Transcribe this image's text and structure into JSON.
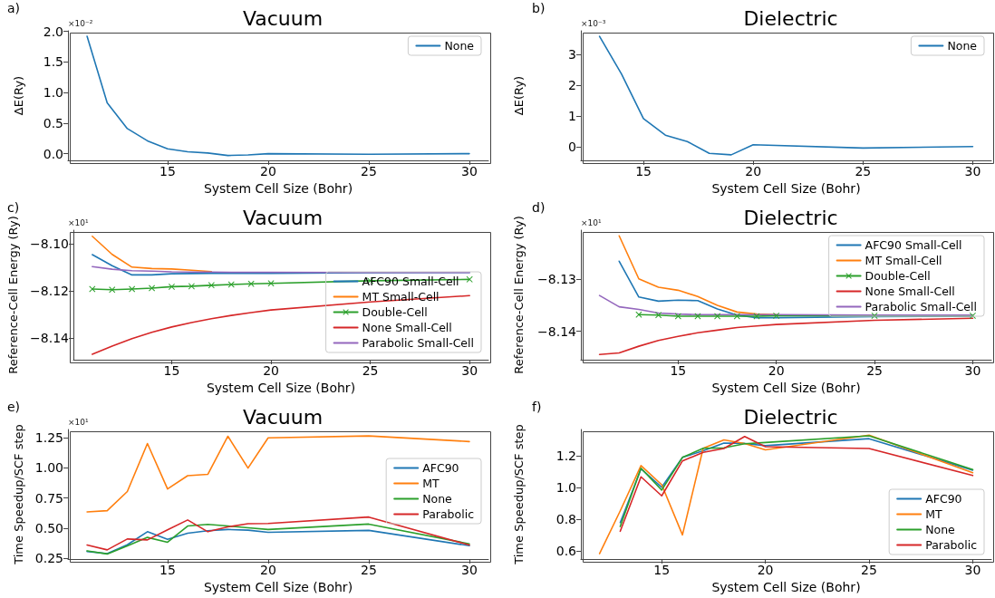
{
  "chart_data": [
    {
      "type": "line",
      "title": "Vacuum",
      "xlabel": "System Cell Size (Bohr)",
      "ylabel": "ΔE(Ry)",
      "annotations": [
        "a)",
        "×10⁻²"
      ],
      "x": [
        11,
        12,
        13,
        14,
        15,
        16,
        17,
        18,
        19,
        20,
        25,
        30
      ],
      "series": [
        {
          "name": "None",
          "color": "#1f77b4",
          "values": [
            1.92,
            0.83,
            0.41,
            0.21,
            0.08,
            0.03,
            0.01,
            -0.03,
            -0.02,
            0.0,
            -0.01,
            0.0
          ]
        }
      ],
      "xlim": [
        10.05,
        30.95
      ],
      "xticks": [
        15,
        20,
        25,
        30
      ],
      "ylim": [
        -0.11,
        2.01
      ],
      "yticks": [
        {
          "value": 0,
          "label": "0.0"
        },
        {
          "value": 0.5,
          "label": "0.5"
        },
        {
          "value": 1,
          "label": "1.0"
        },
        {
          "value": 1.5,
          "label": "1.5"
        },
        {
          "value": 2,
          "label": "2.0"
        }
      ],
      "grid": false,
      "legend": "top right"
    },
    {
      "type": "line",
      "title": "Dielectric",
      "xlabel": "System Cell Size (Bohr)",
      "ylabel": "ΔE(Ry)",
      "annotations": [
        "b)",
        "×10⁻³"
      ],
      "x": [
        13,
        14,
        15,
        16,
        17,
        18,
        19,
        20,
        25,
        30
      ],
      "series": [
        {
          "name": "None",
          "color": "#1f77b4",
          "values": [
            3.6,
            2.38,
            0.93,
            0.39,
            0.18,
            -0.2,
            -0.25,
            0.08,
            -0.03,
            0.02
          ]
        }
      ],
      "xlim": [
        12.15,
        30.85
      ],
      "xticks": [
        15,
        20,
        25,
        30
      ],
      "ylim": [
        -0.43,
        3.78
      ],
      "yticks": [
        0,
        1,
        2,
        3
      ],
      "grid": false,
      "legend": "top right"
    },
    {
      "type": "line",
      "title": "Vacuum",
      "xlabel": "System Cell Size (Bohr)",
      "ylabel": "Reference-Cell Energy (Ry)",
      "annotations": [
        "c)",
        "×10¹"
      ],
      "x": [
        11,
        12,
        13,
        14,
        15,
        16,
        17,
        18,
        19,
        20,
        25,
        30
      ],
      "series": [
        {
          "name": "AFC90 Small-Cell",
          "color": "#1f77b4",
          "values": [
            -8.1046,
            -8.1093,
            -8.1132,
            -8.1132,
            -8.1127,
            -8.1126,
            -8.1125,
            -8.1125,
            -8.1125,
            -8.1125,
            -8.1123,
            -8.1122
          ]
        },
        {
          "name": "MT Small-Cell",
          "color": "#ff7f0e",
          "values": [
            -8.0968,
            -8.1045,
            -8.1099,
            -8.1105,
            -8.1107,
            -8.1112,
            -8.1118,
            null,
            null,
            null,
            null,
            null
          ]
        },
        {
          "name": "Double-Cell",
          "color": "#2ca02c",
          "marker": "cross",
          "values": [
            -8.1192,
            -8.1195,
            -8.1192,
            -8.1188,
            -8.1182,
            -8.118,
            -8.1176,
            -8.1173,
            -8.117,
            -8.1168,
            -8.1157,
            -8.1151
          ]
        },
        {
          "name": "None Small-Cell",
          "color": "#d62728",
          "values": [
            -8.1469,
            -8.1434,
            -8.1403,
            -8.1376,
            -8.1353,
            -8.1334,
            -8.1318,
            -8.1304,
            -8.1292,
            -8.1281,
            -8.1247,
            -8.122
          ]
        },
        {
          "name": "Parabolic Small-Cell",
          "color": "#9467bd",
          "values": [
            -8.1097,
            -8.1108,
            -8.1114,
            -8.1116,
            -8.1119,
            -8.112,
            -8.112,
            -8.1121,
            -8.1121,
            -8.1121,
            -8.1122,
            -8.1122
          ]
        }
      ],
      "xlim": [
        10.05,
        30.95
      ],
      "xticks": [
        15,
        20,
        25,
        30
      ],
      "ylim": [
        -8.1492,
        -8.0942
      ],
      "yticks": [
        {
          "value": -8.14,
          "label": "−8.14"
        },
        {
          "value": -8.12,
          "label": "−8.12"
        },
        {
          "value": -8.1,
          "label": "−8.10"
        }
      ],
      "grid": false,
      "legend": "right"
    },
    {
      "type": "line",
      "title": "Dielectric",
      "xlabel": "System Cell Size (Bohr)",
      "ylabel": "Reference-Cell Energy (Ry)",
      "annotations": [
        "d)",
        "×10¹"
      ],
      "x": [
        11,
        12,
        13,
        14,
        15,
        16,
        17,
        18,
        19,
        20,
        25,
        30
      ],
      "series": [
        {
          "name": "AFC90 Small-Cell",
          "color": "#1f77b4",
          "values": [
            null,
            -8.1265,
            -8.1334,
            -8.1342,
            -8.134,
            -8.1341,
            -8.1357,
            -8.1369,
            -8.1374,
            -8.1374,
            -8.1372,
            -8.1371
          ]
        },
        {
          "name": "MT Small-Cell",
          "color": "#ff7f0e",
          "values": [
            null,
            -8.1216,
            -8.1299,
            -8.1315,
            -8.1321,
            -8.1333,
            -8.135,
            -8.1363,
            -8.1367,
            -8.1368,
            null,
            null
          ]
        },
        {
          "name": "Double-Cell",
          "color": "#2ca02c",
          "marker": "cross",
          "values": [
            null,
            null,
            -8.1368,
            -8.1369,
            -8.1371,
            -8.1371,
            -8.1371,
            -8.1371,
            -8.1371,
            -8.137,
            -8.137,
            -8.137
          ]
        },
        {
          "name": "None Small-Cell",
          "color": "#d62728",
          "values": [
            -8.1445,
            -8.1442,
            -8.1429,
            -8.1418,
            -8.141,
            -8.1403,
            -8.1398,
            -8.1393,
            -8.139,
            -8.1387,
            -8.1379,
            -8.1375
          ]
        },
        {
          "name": "Parabolic Small-Cell",
          "color": "#9467bd",
          "values": [
            -8.1331,
            -8.1353,
            -8.1358,
            -8.1365,
            -8.1367,
            -8.1368,
            -8.1368,
            -8.1368,
            -8.1368,
            -8.1368,
            -8.1369,
            -8.1369
          ]
        }
      ],
      "xlim": [
        10.05,
        30.95
      ],
      "xticks": [
        15,
        20,
        25,
        30
      ],
      "ylim": [
        -8.1455,
        -8.1205
      ],
      "yticks": [
        {
          "value": -8.14,
          "label": "−8.14"
        },
        {
          "value": -8.13,
          "label": "−8.13"
        }
      ],
      "grid": false,
      "legend": "top right"
    },
    {
      "type": "line",
      "title": "Vacuum",
      "xlabel": "System Cell Size (Bohr)",
      "ylabel": "Time Speedup/SCF step",
      "annotations": [
        "e)",
        "×10¹"
      ],
      "x": [
        11,
        12,
        13,
        14,
        15,
        16,
        17,
        18,
        19,
        20,
        25,
        30
      ],
      "series": [
        {
          "name": "AFC90",
          "color": "#1f77b4",
          "values": [
            0.308,
            0.29,
            0.363,
            0.471,
            0.408,
            0.458,
            0.479,
            0.489,
            0.484,
            0.466,
            0.482,
            0.355
          ]
        },
        {
          "name": "MT",
          "color": "#ff7f0e",
          "values": [
            0.634,
            0.645,
            0.803,
            1.2,
            0.824,
            0.934,
            0.945,
            1.26,
            0.997,
            1.247,
            1.263,
            1.216
          ]
        },
        {
          "name": "None",
          "color": "#2ca02c",
          "values": [
            0.313,
            0.287,
            0.353,
            0.424,
            0.384,
            0.518,
            0.532,
            0.518,
            0.503,
            0.489,
            0.534,
            0.371
          ]
        },
        {
          "name": "Parabolic",
          "color": "#d62728",
          "values": [
            0.361,
            0.321,
            0.411,
            0.403,
            0.487,
            0.568,
            0.471,
            0.511,
            0.537,
            0.539,
            0.592,
            0.361
          ]
        }
      ],
      "xlim": [
        10.05,
        30.95
      ],
      "xticks": [
        15,
        20,
        25,
        30
      ],
      "ylim": [
        0.245,
        1.316
      ],
      "yticks": [
        {
          "value": 0.25,
          "label": "0.25"
        },
        {
          "value": 0.5,
          "label": "0.50"
        },
        {
          "value": 0.75,
          "label": "0.75"
        },
        {
          "value": 1,
          "label": "1.00"
        },
        {
          "value": 1.25,
          "label": "1.25"
        }
      ],
      "grid": false,
      "legend": "right"
    },
    {
      "type": "line",
      "title": "Dielectric",
      "xlabel": "System Cell Size (Bohr)",
      "ylabel": "Time Speedup/SCF step",
      "annotations": [
        "f)"
      ],
      "x": [
        12,
        13,
        14,
        15,
        16,
        17,
        18,
        19,
        20,
        25,
        30
      ],
      "series": [
        {
          "name": "AFC90",
          "color": "#1f77b4",
          "values": [
            null,
            0.78,
            1.118,
            1.002,
            1.19,
            1.232,
            1.28,
            1.278,
            1.264,
            1.308,
            1.11
          ]
        },
        {
          "name": "MT",
          "color": "#ff7f0e",
          "values": [
            0.584,
            0.854,
            1.138,
            1.018,
            0.702,
            1.248,
            1.3,
            1.278,
            1.238,
            1.33,
            1.094
          ]
        },
        {
          "name": "None",
          "color": "#2ca02c",
          "values": [
            null,
            0.755,
            1.122,
            0.984,
            1.19,
            1.248,
            1.25,
            1.276,
            1.284,
            1.326,
            1.114
          ]
        },
        {
          "name": "Parabolic",
          "color": "#d62728",
          "values": [
            null,
            0.725,
            1.068,
            0.948,
            1.168,
            1.222,
            1.246,
            1.322,
            1.258,
            1.246,
            1.076
          ]
        }
      ],
      "xlim": [
        11.1,
        30.9
      ],
      "xticks": [
        15,
        20,
        25,
        30
      ],
      "ylim": [
        0.55,
        1.366
      ],
      "yticks": [
        {
          "value": 0.6,
          "label": "0.6"
        },
        {
          "value": 0.8,
          "label": "0.8"
        },
        {
          "value": 1,
          "label": "1.0"
        },
        {
          "value": 1.2,
          "label": "1.2"
        }
      ],
      "grid": false,
      "legend": "bottom right"
    }
  ]
}
